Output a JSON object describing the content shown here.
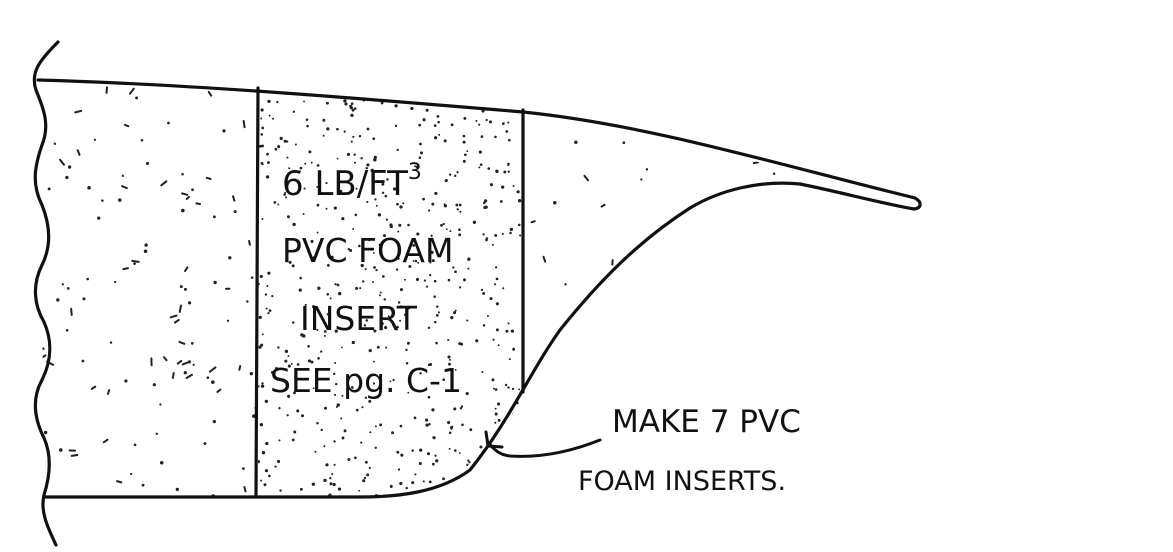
{
  "figure": {
    "insert_label": {
      "line1": "6 LB/FT",
      "line1_superscript": "3",
      "line2": "PVC FOAM",
      "line3": "INSERT",
      "line4": "SEE pg. C-1"
    },
    "callout": {
      "line1": "MAKE 7 PVC",
      "line2": "FOAM INSERTS."
    }
  }
}
